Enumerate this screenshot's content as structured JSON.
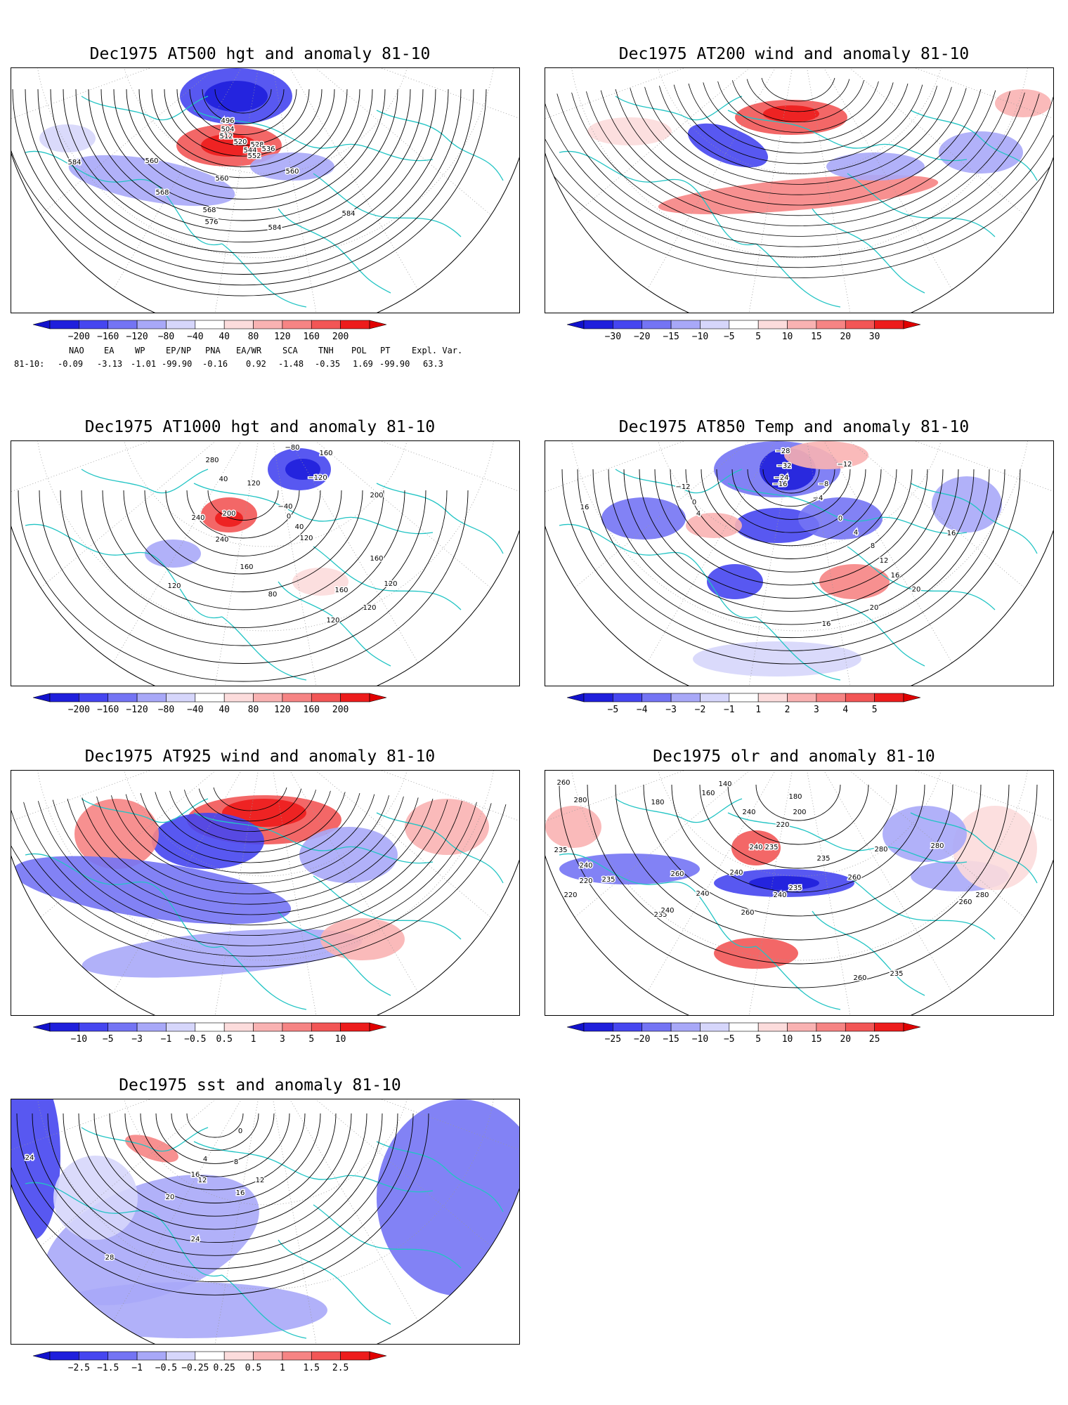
{
  "panels": [
    {
      "title": "Dec1975 AT500 hgt and anomaly 81-10",
      "contour_labels": [
        "496",
        "504",
        "512",
        "520",
        "528",
        "536",
        "544",
        "552",
        "560",
        "560",
        "560",
        "568",
        "568",
        "576",
        "584",
        "584",
        "584"
      ],
      "colorbar": [
        "-200",
        "-160",
        "-120",
        "-80",
        "-40",
        "40",
        "80",
        "120",
        "160",
        "200"
      ]
    },
    {
      "title": "Dec1975 AT200 wind and anomaly 81-10",
      "contour_labels": [],
      "colorbar": [
        "-30",
        "-20",
        "-15",
        "-10",
        "-5",
        "5",
        "10",
        "15",
        "20",
        "30"
      ]
    },
    {
      "title": "Dec1975 AT1000 hgt and anomaly 81-10",
      "contour_labels": [
        "-80",
        "-120",
        "280",
        "40",
        "120",
        "240",
        "200",
        "-40",
        "0",
        "40",
        "120",
        "160",
        "200",
        "240",
        "160",
        "160",
        "160",
        "120",
        "120",
        "80",
        "120",
        "120"
      ],
      "colorbar": [
        "-200",
        "-160",
        "-120",
        "-80",
        "-40",
        "40",
        "80",
        "120",
        "160",
        "200"
      ]
    },
    {
      "title": "Dec1975 AT850 Temp and anomaly 81-10",
      "contour_labels": [
        "-28",
        "-32",
        "-24",
        "-16",
        "-12",
        "-12",
        "-8",
        "-4",
        "0",
        "4",
        "16",
        "0",
        "4",
        "8",
        "12",
        "16",
        "16",
        "20",
        "20",
        "16"
      ],
      "colorbar": [
        "-5",
        "-4",
        "-3",
        "-2",
        "-1",
        "1",
        "2",
        "3",
        "4",
        "5"
      ]
    },
    {
      "title": "Dec1975 AT925 wind and anomaly 81-10",
      "contour_labels": [],
      "colorbar": [
        "-10",
        "-5",
        "-3",
        "-1",
        "-0.5",
        "0.5",
        "1",
        "3",
        "5",
        "10"
      ]
    },
    {
      "title": "Dec1975 olr and anomaly 81-10",
      "contour_labels": [
        "260",
        "180",
        "160",
        "140",
        "180",
        "200",
        "220",
        "240",
        "280",
        "235",
        "240",
        "220",
        "235",
        "240",
        "235",
        "235",
        "260",
        "240",
        "240",
        "235",
        "260",
        "280",
        "280",
        "235",
        "240",
        "260",
        "240",
        "260",
        "280",
        "220",
        "235",
        "260"
      ],
      "colorbar": [
        "-25",
        "-20",
        "-15",
        "-10",
        "-5",
        "5",
        "10",
        "15",
        "20",
        "25"
      ]
    },
    {
      "title": "Dec1975 sst and anomaly 81-10",
      "contour_labels": [
        "24",
        "0",
        "4",
        "8",
        "12",
        "16",
        "20",
        "24",
        "28",
        "16",
        "12"
      ],
      "colorbar": [
        "-2.5",
        "-1.5",
        "-1",
        "-0.5",
        "-0.25",
        "0.25",
        "0.5",
        "1",
        "1.5",
        "2.5"
      ]
    }
  ],
  "indices": {
    "headers": [
      "NAO",
      "EA",
      "WP",
      "EP/NP",
      "PNA",
      "EA/WR",
      "SCA",
      "TNH",
      "POL",
      "PT",
      "Expl. Var."
    ],
    "row_label": "81-10:",
    "values": [
      "-0.09",
      "-3.13",
      "-1.01",
      "-99.90",
      "-0.16",
      "0.92",
      "-1.48",
      "-0.35",
      "1.69",
      "-99.90",
      "63.3"
    ]
  },
  "colors": {
    "coast": "#22c4c4",
    "contour": "#000000",
    "blue_scale": [
      "#1f1fdc",
      "#4646f0",
      "#7474f4",
      "#a8a8f8",
      "#d6d6fb"
    ],
    "red_scale": [
      "#fcdcdc",
      "#f9b2b2",
      "#f68484",
      "#f25656",
      "#ed1c1c"
    ]
  }
}
